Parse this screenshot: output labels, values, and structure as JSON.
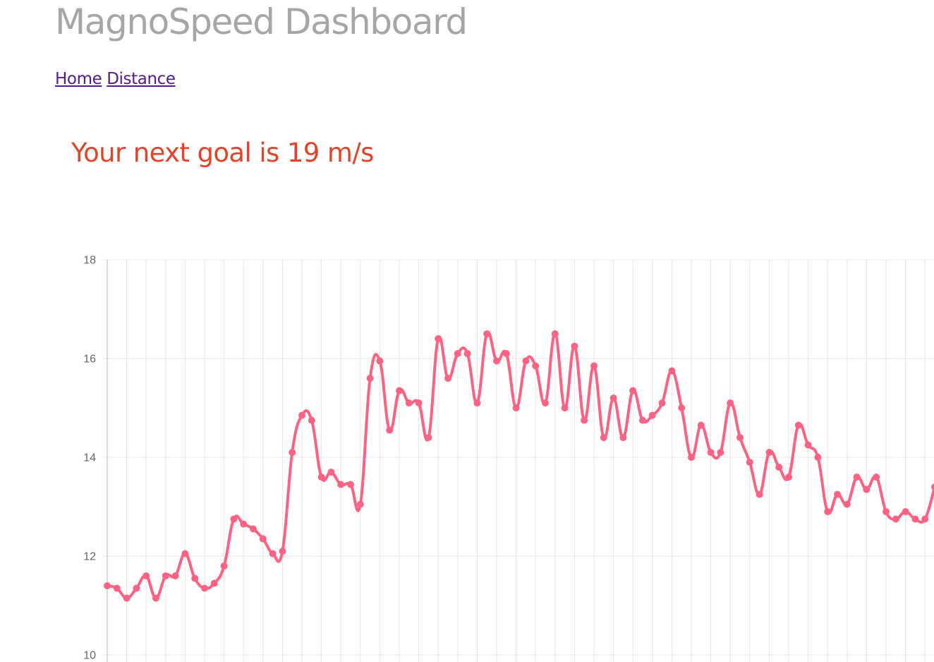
{
  "header": {
    "title": "MagnoSpeed Dashboard"
  },
  "nav": {
    "links": [
      "Home",
      "Distance"
    ]
  },
  "goal": {
    "text": "Your next goal is 19 m/s"
  },
  "colors": {
    "title": "#a6a6a6",
    "link": "#551a8b",
    "goal": "#e0452c",
    "series": "#ff6384",
    "grid": "#e5e5e5",
    "axis": "#b3b3b3",
    "tick_label": "#666666"
  },
  "chart_data": {
    "type": "line",
    "ylim": [
      10,
      18
    ],
    "y_ticks": [
      10,
      12,
      14,
      16,
      18
    ],
    "grid": true,
    "series": [
      {
        "values": [
          11.4,
          11.35,
          11.15,
          11.35,
          11.6,
          11.15,
          11.6,
          11.6,
          12.05,
          11.55,
          11.35,
          11.45,
          11.8,
          12.75,
          12.65,
          12.55,
          12.35,
          12.05,
          12.1,
          14.1,
          14.85,
          14.75,
          13.6,
          13.7,
          13.45,
          13.45,
          13.05,
          15.6,
          15.95,
          14.55,
          15.35,
          15.1,
          15.1,
          14.4,
          16.4,
          15.6,
          16.1,
          16.1,
          15.1,
          16.5,
          15.95,
          16.1,
          15.0,
          15.95,
          15.85,
          15.1,
          16.5,
          15.0,
          16.25,
          14.75,
          15.85,
          14.4,
          15.2,
          14.4,
          15.35,
          14.75,
          14.85,
          15.1,
          15.75,
          15.0,
          14.0,
          14.65,
          14.1,
          14.1,
          15.1,
          14.4,
          13.9,
          13.25,
          14.1,
          13.8,
          13.6,
          14.65,
          14.25,
          14.0,
          12.9,
          13.25,
          13.05,
          13.6,
          13.35,
          13.6,
          12.9,
          12.75,
          12.9,
          12.75,
          12.75,
          13.4
        ]
      }
    ]
  }
}
